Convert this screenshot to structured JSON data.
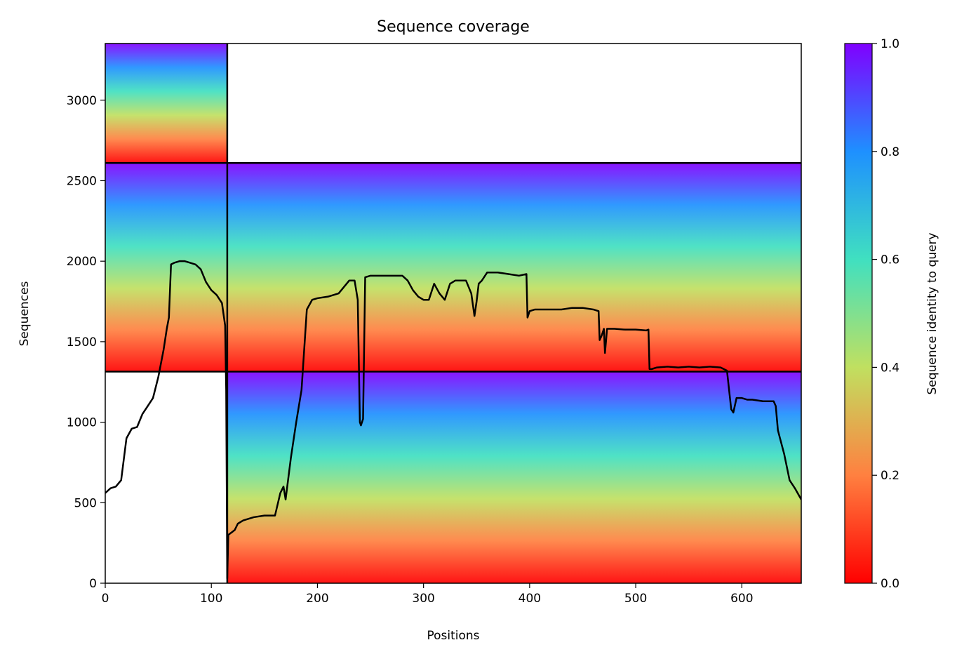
{
  "chart_data": {
    "type": "heatmap",
    "title": "Sequence coverage",
    "xlabel": "Positions",
    "ylabel": "Sequences",
    "xlim": [
      0,
      656
    ],
    "ylim": [
      0,
      3352
    ],
    "x_ticks": [
      0,
      100,
      200,
      300,
      400,
      500,
      600
    ],
    "y_ticks": [
      0,
      500,
      1000,
      1500,
      2000,
      2500,
      3000
    ],
    "colorbar": {
      "label": "Sequence identity to query",
      "colormap": "rainbow_r",
      "range": [
        0,
        1
      ],
      "ticks": [
        "0.0",
        "0.2",
        "0.4",
        "0.6",
        "0.8",
        "1.0"
      ],
      "stops": [
        "#ff0000",
        "#ff8040",
        "#c0e060",
        "#40e0c0",
        "#1e90ff",
        "#8000ff"
      ]
    },
    "chain_boundaries": {
      "x": [
        115
      ],
      "y": [
        1314,
        2610
      ]
    },
    "blocks": [
      {
        "x": [
          0,
          115
        ],
        "y": [
          2610,
          3352
        ]
      },
      {
        "x": [
          115,
          656
        ],
        "y": [
          1314,
          2610
        ]
      },
      {
        "x": [
          0,
          115
        ],
        "y": [
          1314,
          2610
        ]
      },
      {
        "x": [
          115,
          656
        ],
        "y": [
          0,
          1314
        ]
      }
    ],
    "coverage_line": {
      "x": [
        0,
        5,
        10,
        15,
        20,
        25,
        30,
        35,
        40,
        45,
        50,
        55,
        58,
        60,
        62,
        65,
        70,
        75,
        80,
        85,
        90,
        95,
        100,
        105,
        110,
        113,
        114,
        115,
        116,
        118,
        120,
        122,
        125,
        130,
        140,
        150,
        160,
        165,
        168,
        170,
        175,
        180,
        185,
        190,
        195,
        200,
        210,
        220,
        230,
        235,
        238,
        240,
        241,
        243,
        245,
        250,
        260,
        270,
        280,
        285,
        290,
        295,
        300,
        305,
        310,
        315,
        320,
        325,
        330,
        340,
        345,
        348,
        350,
        352,
        355,
        360,
        370,
        380,
        390,
        397,
        398,
        400,
        405,
        410,
        420,
        430,
        440,
        450,
        460,
        465,
        466,
        468,
        470,
        471,
        473,
        475,
        480,
        490,
        500,
        510,
        512,
        513,
        515,
        520,
        530,
        540,
        550,
        560,
        570,
        580,
        586,
        588,
        590,
        592,
        595,
        600,
        605,
        610,
        620,
        630,
        632,
        634,
        636,
        640,
        645,
        650,
        656
      ],
      "y": [
        560,
        590,
        600,
        640,
        900,
        960,
        970,
        1050,
        1100,
        1150,
        1280,
        1450,
        1580,
        1650,
        1980,
        1990,
        2000,
        2000,
        1990,
        1980,
        1950,
        1870,
        1820,
        1790,
        1740,
        1600,
        1200,
        30,
        300,
        310,
        320,
        330,
        370,
        390,
        410,
        420,
        420,
        560,
        600,
        520,
        780,
        1000,
        1200,
        1700,
        1760,
        1770,
        1780,
        1800,
        1880,
        1880,
        1760,
        1000,
        980,
        1020,
        1900,
        1910,
        1910,
        1910,
        1910,
        1880,
        1820,
        1780,
        1760,
        1760,
        1860,
        1800,
        1760,
        1860,
        1880,
        1880,
        1800,
        1660,
        1750,
        1860,
        1880,
        1930,
        1930,
        1920,
        1910,
        1920,
        1650,
        1690,
        1700,
        1700,
        1700,
        1700,
        1710,
        1710,
        1700,
        1690,
        1510,
        1540,
        1580,
        1430,
        1580,
        1580,
        1580,
        1575,
        1575,
        1570,
        1575,
        1330,
        1330,
        1340,
        1345,
        1340,
        1345,
        1340,
        1345,
        1340,
        1320,
        1200,
        1080,
        1060,
        1150,
        1150,
        1140,
        1140,
        1130,
        1130,
        1100,
        950,
        900,
        800,
        640,
        590,
        520
      ]
    }
  }
}
